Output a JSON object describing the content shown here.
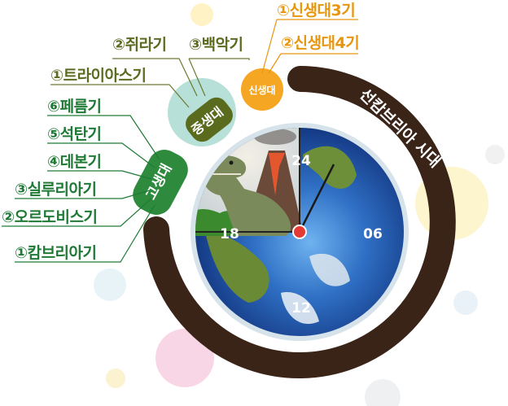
{
  "eras": {
    "precambrian": {
      "name": "선캄브리아 시대"
    },
    "paleozoic": {
      "name": "고생대",
      "periods": [
        "⑥페름기",
        "⑤석탄기",
        "④데본기",
        "③실루리아기",
        "②오르도비스기",
        "①캄브리아기"
      ]
    },
    "mesozoic": {
      "name": "중생대",
      "periods": [
        "①트라이아스기",
        "②쥐라기",
        "③백악기"
      ]
    },
    "cenozoic": {
      "name": "신생대",
      "periods": [
        "①신생대3기",
        "②신생대4기"
      ]
    }
  },
  "clock": {
    "labels": [
      "24",
      "06",
      "12",
      "18"
    ]
  },
  "colors": {
    "paleozoic": "#2e8b3e",
    "mesozoic": "#b6e0d8",
    "cenozoic": "#f5a623",
    "precambrian": "#3a2418",
    "hand": "#1a1a1a",
    "center": "#e53935"
  },
  "icons": [
    "dinosaur-illustration",
    "volcano-illustration",
    "earth-globe-illustration"
  ]
}
